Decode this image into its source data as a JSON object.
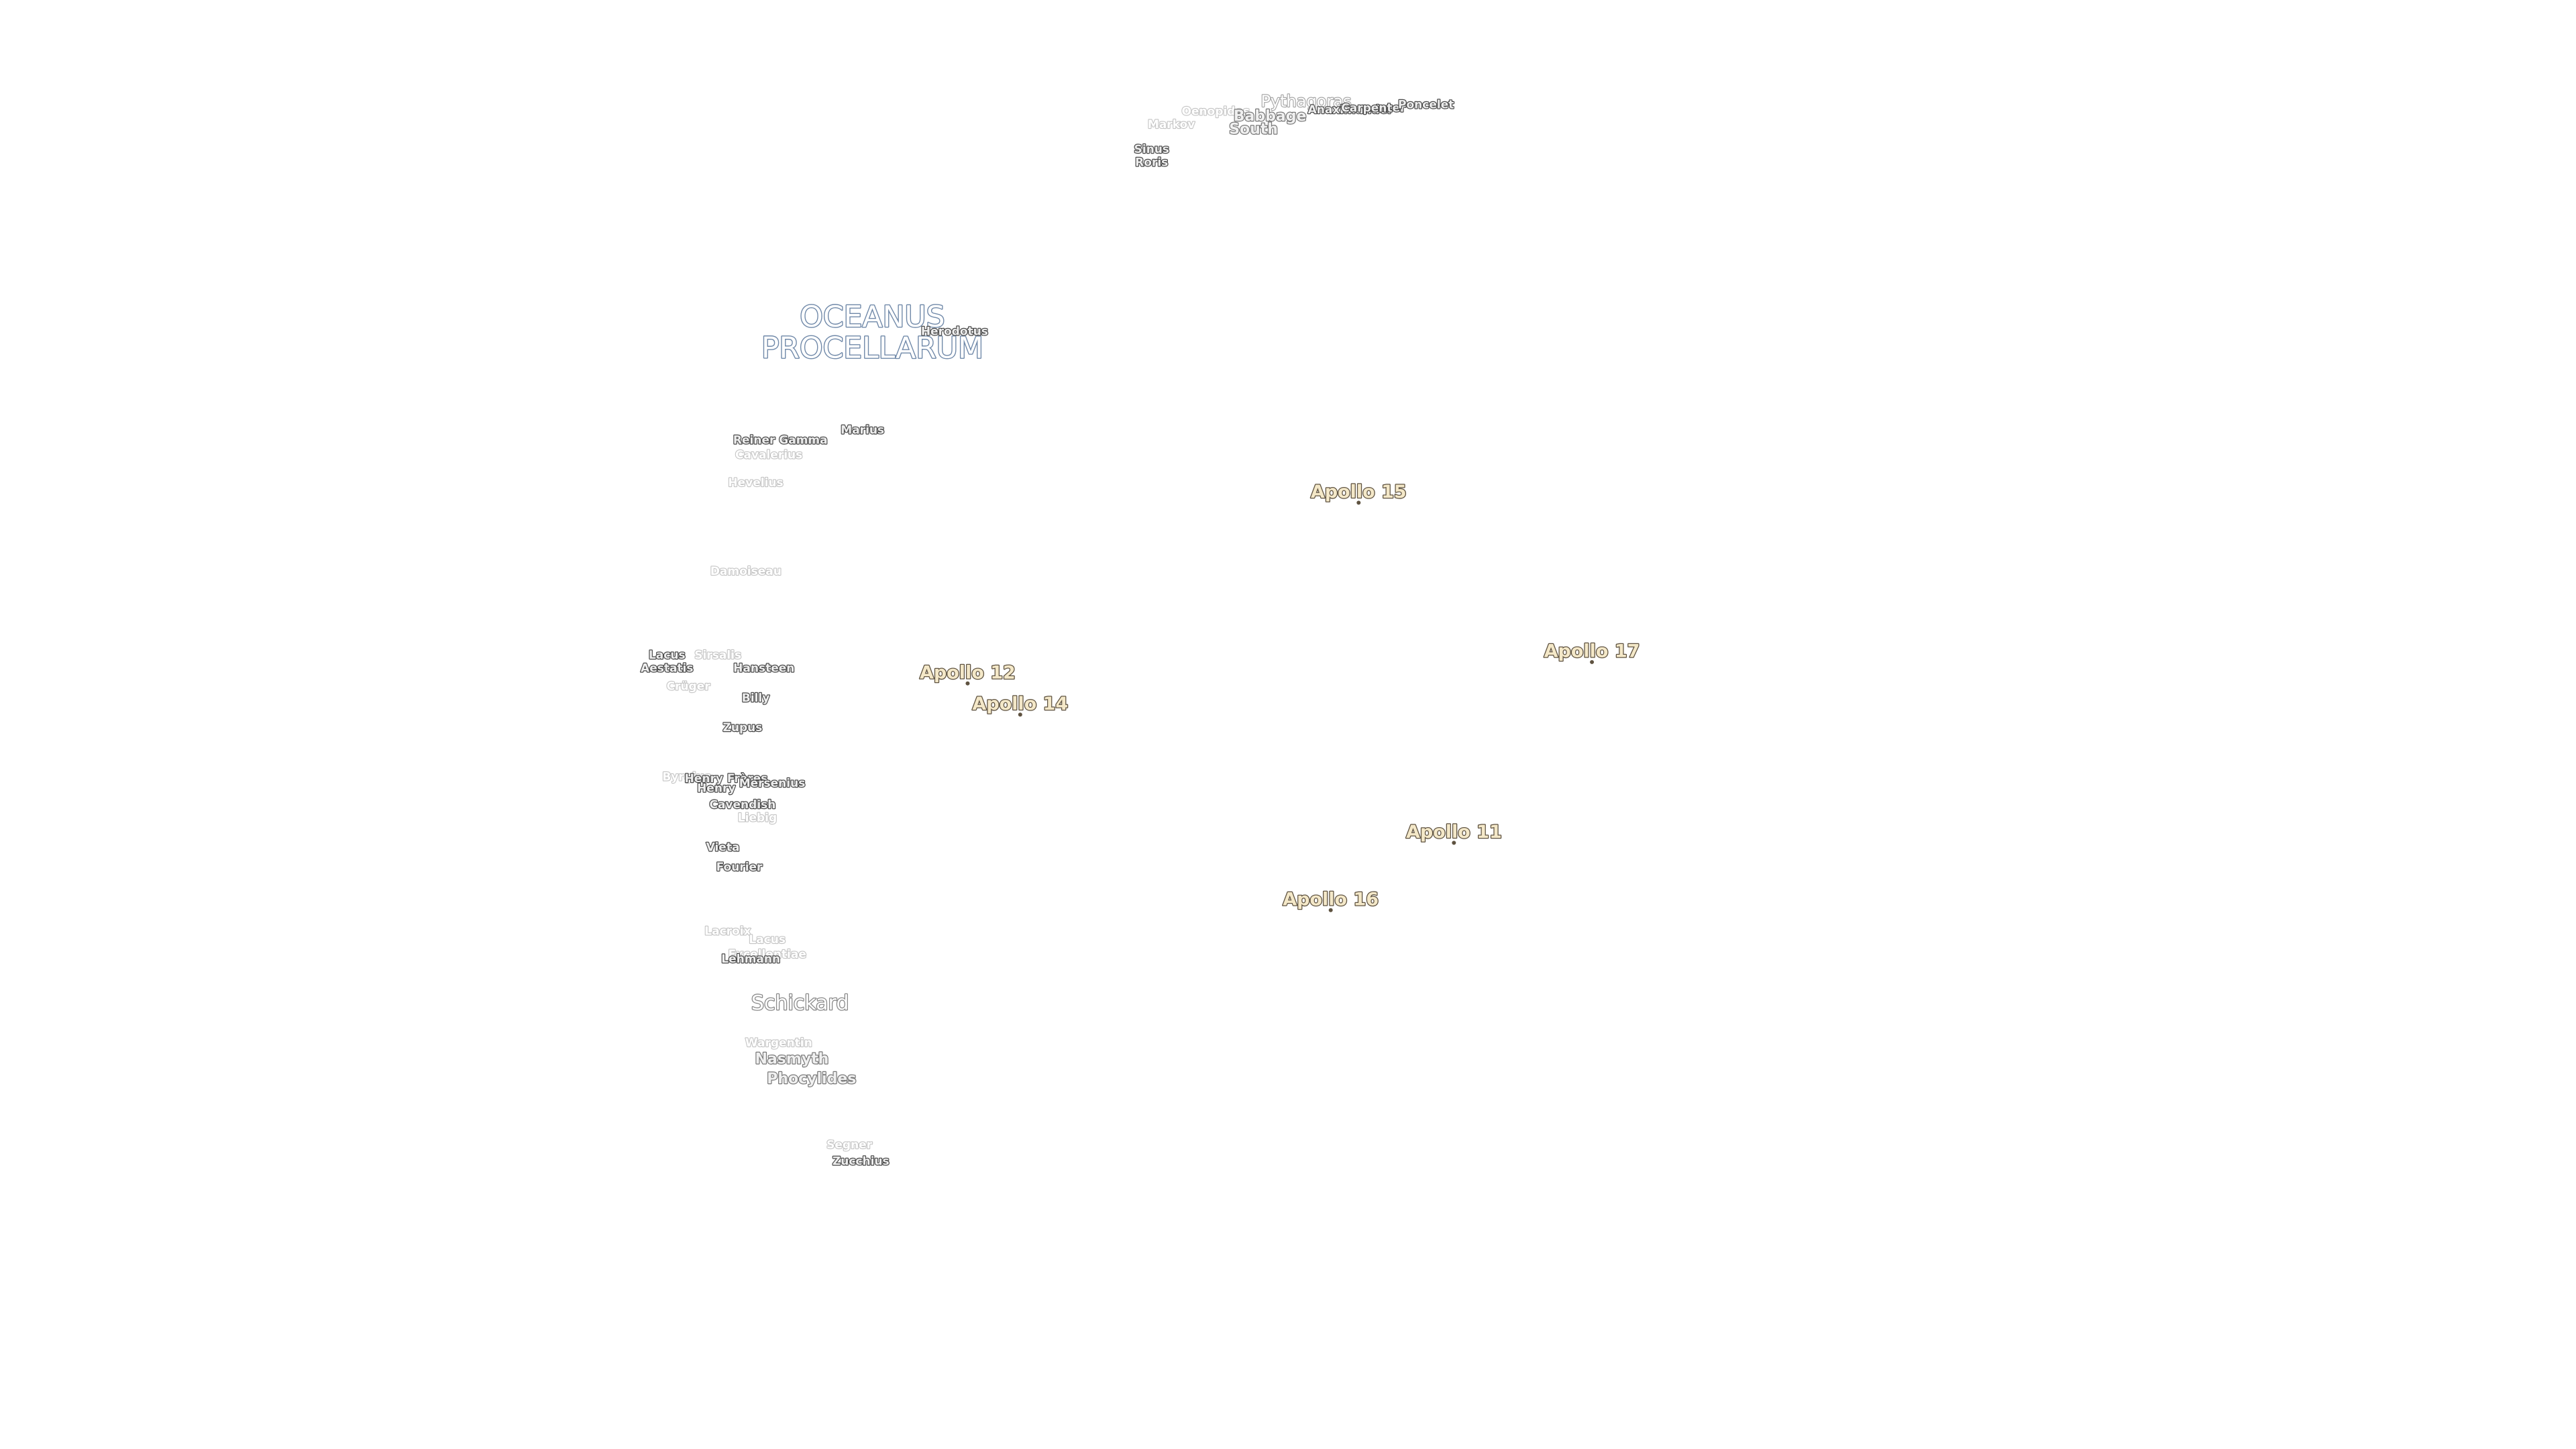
{
  "labels": [
    {
      "lines": [
        "Pythagoras"
      ]
    },
    {
      "lines": [
        "Oenopides"
      ]
    },
    {
      "lines": [
        "Babbage"
      ]
    },
    {
      "lines": [
        "South"
      ]
    },
    {
      "lines": [
        "Markov"
      ]
    },
    {
      "lines": [
        "Anaximander"
      ]
    },
    {
      "lines": [
        "Carpenter"
      ]
    },
    {
      "lines": [
        "Poncelet"
      ]
    },
    {
      "lines": [
        "Sinus",
        "Roris"
      ]
    },
    {
      "lines": [
        "OCEANUS",
        "PROCELLARUM"
      ]
    },
    {
      "lines": [
        "Herodotus"
      ]
    },
    {
      "lines": [
        "Reiner Gamma"
      ]
    },
    {
      "lines": [
        "Marius"
      ]
    },
    {
      "lines": [
        "Cavalerius"
      ]
    },
    {
      "lines": [
        "Hevelius"
      ]
    },
    {
      "lines": [
        "Damoiseau"
      ]
    },
    {
      "lines": [
        "Lacus",
        "Aestatis"
      ]
    },
    {
      "lines": [
        "Sirsalis"
      ]
    },
    {
      "lines": [
        "Hansteen"
      ]
    },
    {
      "lines": [
        "Crüger"
      ]
    },
    {
      "lines": [
        "Billy"
      ]
    },
    {
      "lines": [
        "Zupus"
      ]
    },
    {
      "lines": [
        "Byrgius"
      ]
    },
    {
      "lines": [
        "Henry Frères"
      ]
    },
    {
      "lines": [
        "Henry"
      ]
    },
    {
      "lines": [
        "Mersenius"
      ]
    },
    {
      "lines": [
        "Cavendish"
      ]
    },
    {
      "lines": [
        "Liebig"
      ]
    },
    {
      "lines": [
        "Vieta"
      ]
    },
    {
      "lines": [
        "Fourier"
      ]
    },
    {
      "lines": [
        "Lacroix"
      ]
    },
    {
      "lines": [
        "Lacus",
        "Excellentiae"
      ]
    },
    {
      "lines": [
        "Lehmann"
      ]
    },
    {
      "lines": [
        "Schickard"
      ]
    },
    {
      "lines": [
        "Wargentin"
      ]
    },
    {
      "lines": [
        "Nasmyth"
      ]
    },
    {
      "lines": [
        "Phocylides"
      ]
    },
    {
      "lines": [
        "Segner"
      ]
    },
    {
      "lines": [
        "Zucchius"
      ]
    }
  ],
  "apollo_sites": [
    "Apollo 15",
    "Apollo 12",
    "Apollo 14",
    "Apollo 17",
    "Apollo 11",
    "Apollo 16"
  ]
}
